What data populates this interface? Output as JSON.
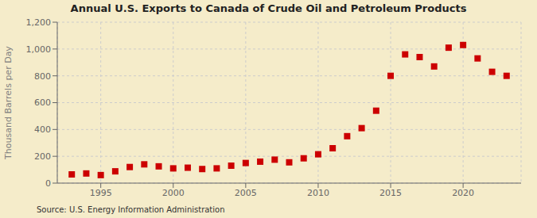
{
  "chart_data": {
    "type": "scatter",
    "title": "Annual U.S. Exports to Canada of Crude Oil and Petroleum Products",
    "ylabel": "Thousand Barrels per Day",
    "annotations": [
      "Source: U.S. Energy Information Administration"
    ],
    "x": [
      1993,
      1994,
      1995,
      1996,
      1997,
      1998,
      1999,
      2000,
      2001,
      2002,
      2003,
      2004,
      2005,
      2006,
      2007,
      2008,
      2009,
      2010,
      2011,
      2012,
      2013,
      2014,
      2015,
      2016,
      2017,
      2018,
      2019,
      2020,
      2021,
      2022,
      2023
    ],
    "values": [
      65,
      72,
      60,
      88,
      120,
      140,
      125,
      110,
      115,
      105,
      110,
      130,
      150,
      160,
      175,
      155,
      185,
      215,
      260,
      350,
      410,
      540,
      800,
      960,
      940,
      870,
      1010,
      1030,
      930,
      830,
      800
    ],
    "color": "#cc0000",
    "marker": "square",
    "xlim": [
      1992,
      2024
    ],
    "xticks": [
      1995,
      2000,
      2005,
      2010,
      2015,
      2020
    ],
    "ylim": [
      0,
      1200
    ],
    "yticks": [
      0,
      200,
      400,
      600,
      800,
      {
        "value": 1000,
        "label": "1,000"
      },
      {
        "value": 1200,
        "label": "1,200"
      }
    ],
    "grid": true
  }
}
